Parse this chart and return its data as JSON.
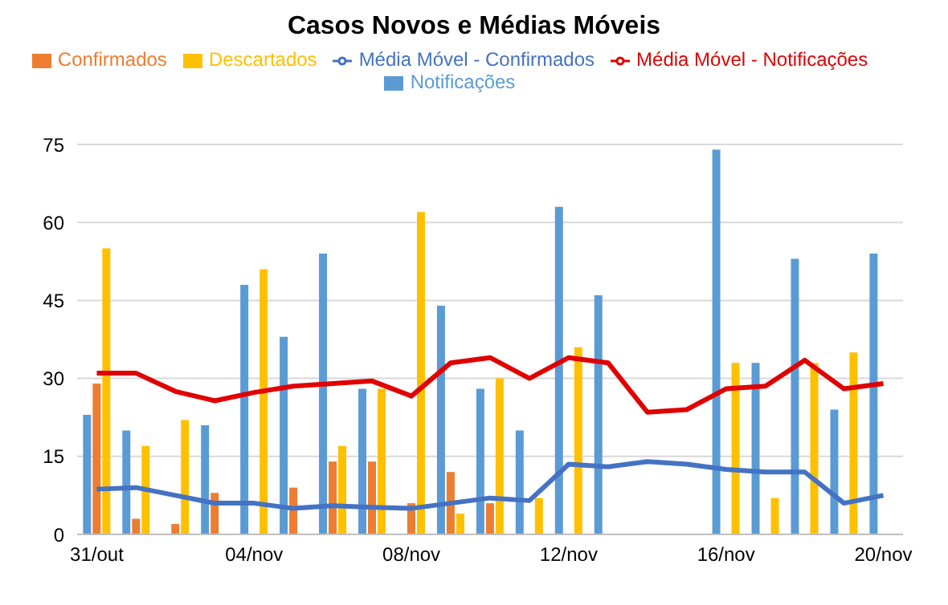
{
  "chart_data": {
    "type": "bar",
    "title": "Casos Novos e Médias Móveis",
    "categories": [
      "31/out",
      null,
      null,
      null,
      "04/nov",
      null,
      null,
      null,
      "08/nov",
      null,
      null,
      null,
      "12/nov",
      null,
      null,
      null,
      "16/nov",
      null,
      null,
      null,
      "20/nov"
    ],
    "series": [
      {
        "name": "Notificações",
        "color": "#5b9bd5",
        "values": [
          23,
          20,
          null,
          21,
          48,
          38,
          54,
          28,
          null,
          44,
          28,
          20,
          63,
          46,
          null,
          null,
          74,
          33,
          53,
          24,
          54
        ]
      },
      {
        "name": "Confirmados",
        "color": "#ed7d31",
        "values": [
          29,
          3,
          2,
          8,
          null,
          9,
          14,
          14,
          6,
          12,
          6,
          null,
          null,
          null,
          null,
          null,
          null,
          null,
          null,
          null,
          null
        ]
      },
      {
        "name": "Descartados",
        "color": "#ffc000",
        "values": [
          55,
          17,
          22,
          null,
          51,
          null,
          17,
          28,
          62,
          4,
          30,
          7,
          36,
          null,
          null,
          null,
          33,
          7,
          33,
          35,
          null
        ]
      },
      {
        "name": "Média Móvel - Notificações",
        "type": "line",
        "color": "#e00000",
        "values": [
          31,
          31,
          27.5,
          25.7,
          27.3,
          28.5,
          29,
          29.5,
          26.6,
          33,
          34,
          30,
          34,
          33,
          23.5,
          24,
          28,
          28.5,
          33.5,
          28,
          29
        ]
      },
      {
        "name": "Média Móvel - Confirmados",
        "type": "line",
        "color": "#4472c4",
        "values": [
          8.7,
          9,
          7.5,
          6,
          6,
          5,
          5.5,
          5.2,
          5,
          6,
          7,
          6.5,
          13.5,
          13,
          14,
          13.5,
          12.5,
          12,
          12,
          6,
          7.5
        ]
      }
    ],
    "ylim": [
      0,
      75
    ],
    "yticks": [
      0,
      15,
      30,
      45,
      60,
      75
    ],
    "grid": "y",
    "legend": "top",
    "marker": "none",
    "line_style": "solid"
  }
}
